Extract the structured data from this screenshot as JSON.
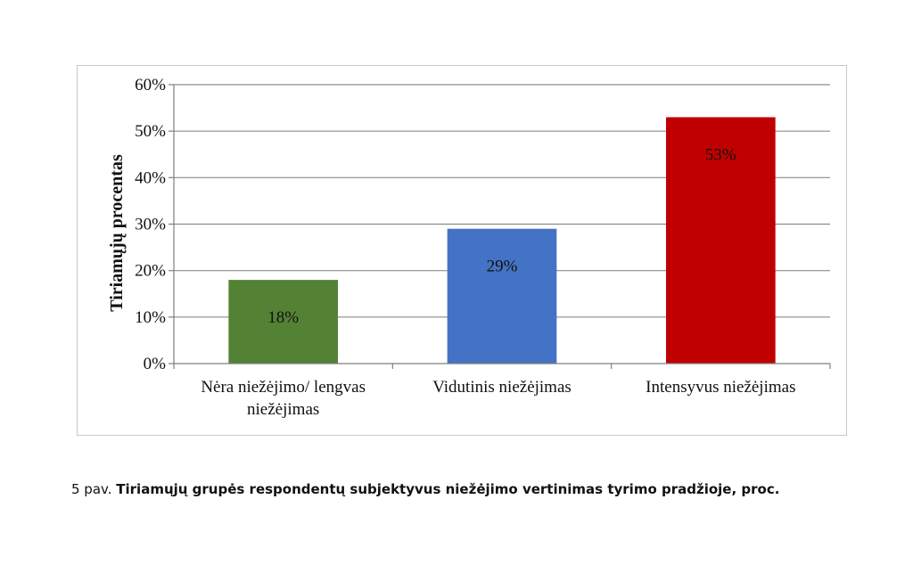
{
  "chart_data": {
    "type": "bar",
    "categories": [
      "Nėra niežėjimo/ lengvas niežėjimas",
      "Vidutinis niežėjimas",
      "Intensyvus niežėjimas"
    ],
    "category_lines": [
      [
        "Nėra niežėjimo/ lengvas",
        "niežėjimas"
      ],
      [
        "Vidutinis niežėjimas"
      ],
      [
        "Intensyvus niežėjimas"
      ]
    ],
    "values": [
      18,
      29,
      53
    ],
    "value_labels": [
      "18%",
      "29%",
      "53%"
    ],
    "colors": [
      "#548235",
      "#4472C4",
      "#C00000"
    ],
    "ylabel": "Tiriamųjų procentas",
    "xlabel": "",
    "ylim": [
      0,
      60
    ],
    "ytick_values": [
      0,
      10,
      20,
      30,
      40,
      50,
      60
    ],
    "ytick_labels": [
      "0%",
      "10%",
      "20%",
      "30%",
      "40%",
      "50%",
      "60%"
    ],
    "grid": true,
    "legend": false
  },
  "caption": {
    "prefix": "5 pav. ",
    "title": "Tiriamųjų grupės respondentų subjektyvus niežėjimo vertinimas tyrimo pradžioje, proc."
  }
}
